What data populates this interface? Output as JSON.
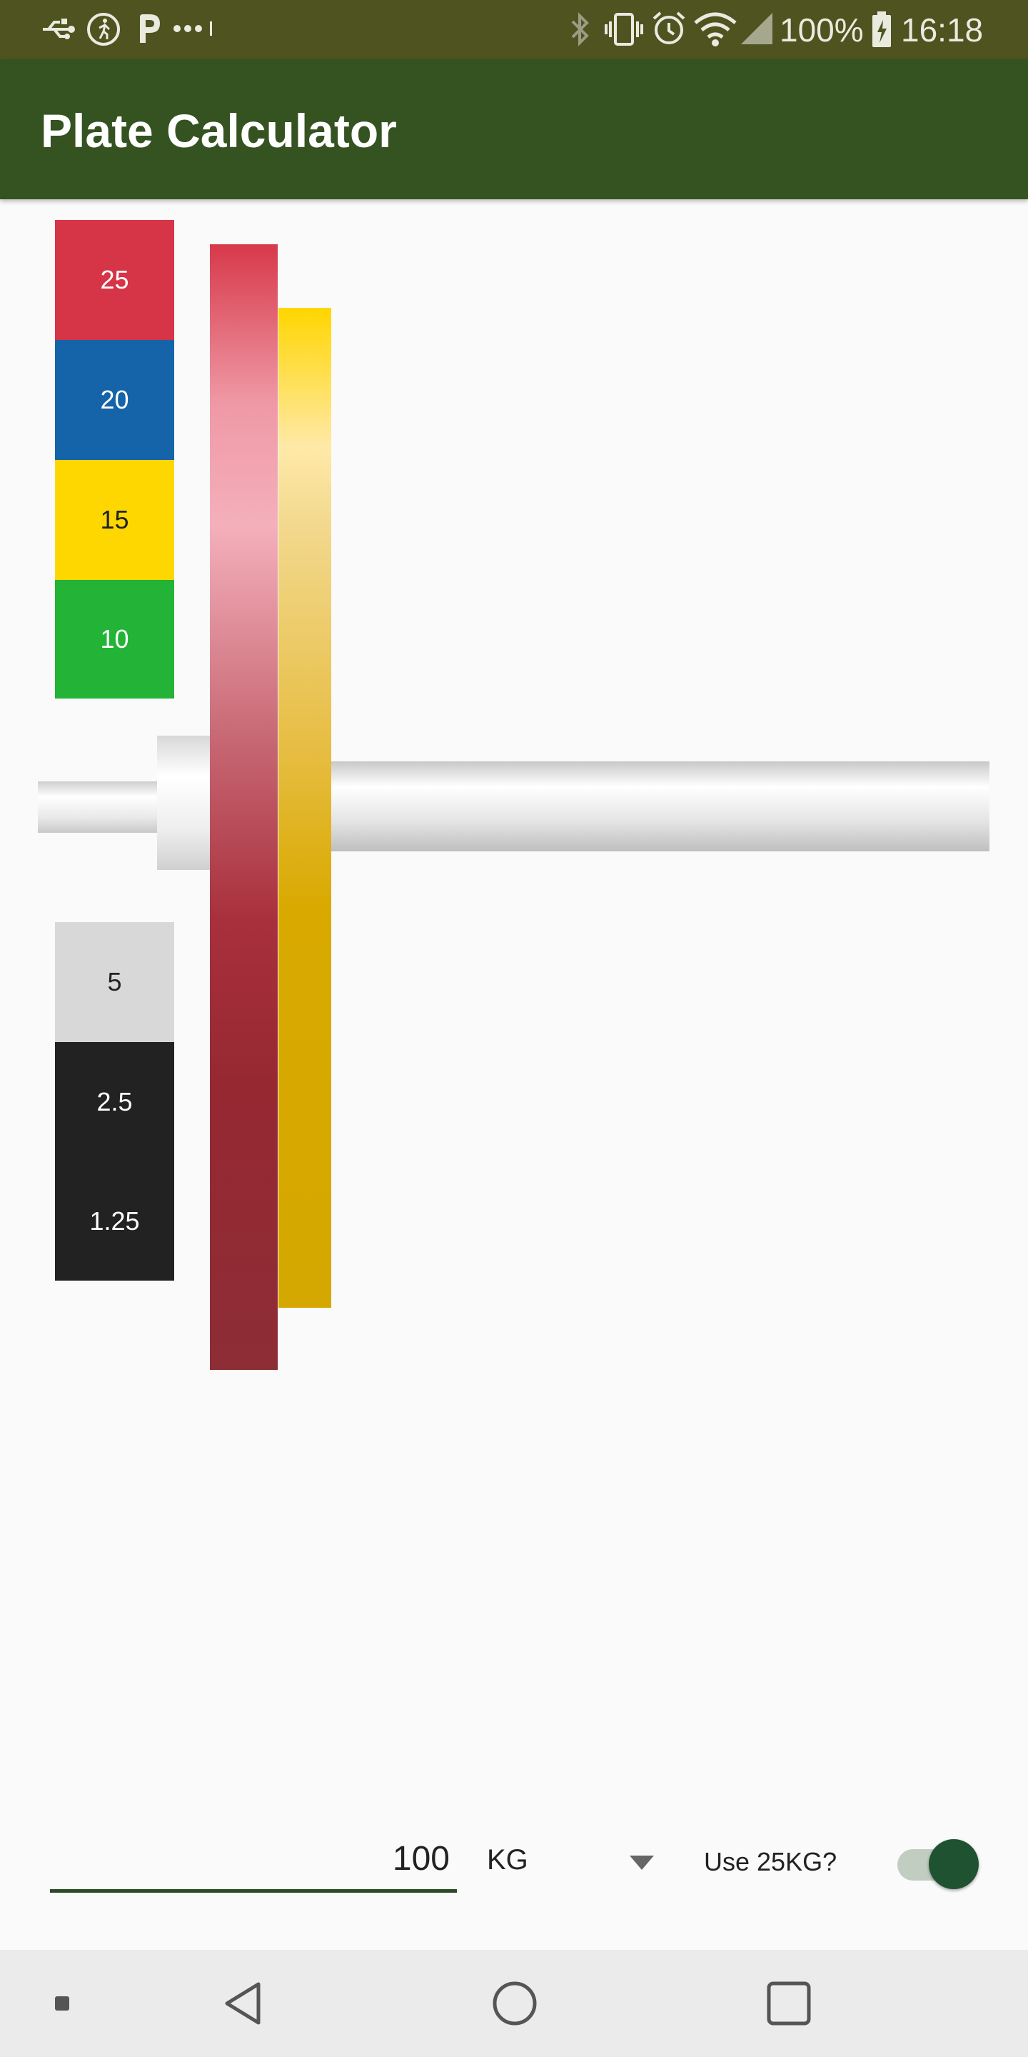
{
  "status_bar": {
    "battery_text": "100%",
    "time": "16:18",
    "icons_left": [
      "usb-icon",
      "activity-icon",
      "parking-icon",
      "more-dots-icon"
    ],
    "icons_right": [
      "bluetooth-icon",
      "vibrate-icon",
      "alarm-icon",
      "wifi-icon",
      "signal-icon",
      "battery-charging-icon"
    ]
  },
  "app_bar": {
    "title": "Plate Calculator"
  },
  "legend": {
    "upper": [
      {
        "label": "25",
        "color": "#d63447",
        "text_color": "#ffffff"
      },
      {
        "label": "20",
        "color": "#1563a8",
        "text_color": "#ffffff"
      },
      {
        "label": "15",
        "color": "#ffd700",
        "text_color": "#222222"
      },
      {
        "label": "10",
        "color": "#22b337",
        "text_color": "#ffffff"
      }
    ],
    "lower": [
      {
        "label": "5",
        "color": "#d8d8d8",
        "text_color": "#222222"
      },
      {
        "label": "2.5",
        "color": "#222222",
        "text_color": "#ffffff"
      },
      {
        "label": "1.25",
        "color": "#222222",
        "text_color": "#ffffff"
      }
    ]
  },
  "barbell": {
    "plates_loaded": [
      {
        "weight": "25",
        "color": "#d63447"
      },
      {
        "weight": "15",
        "color": "#ffd700"
      }
    ]
  },
  "controls": {
    "weight_value": "100",
    "unit": "KG",
    "toggle_label": "Use 25KG?",
    "toggle_on": true,
    "accent": "#2b4d26"
  },
  "nav_bar": {
    "buttons": [
      "recent-apps-small-icon",
      "back-icon",
      "home-icon",
      "overview-icon"
    ]
  }
}
